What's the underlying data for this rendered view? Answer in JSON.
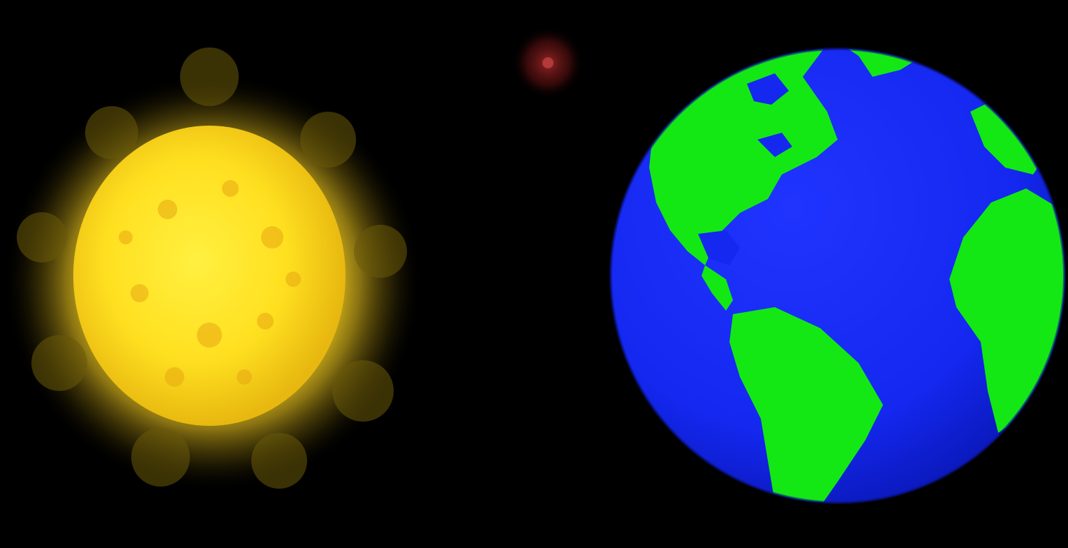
{
  "scene": {
    "kind": "space illustration",
    "background_color": "#000000",
    "sun": {
      "icon": "sun-icon",
      "core_color": "#ffe020",
      "halo_color": "#8a7a10"
    },
    "red_star": {
      "icon": "star-icon",
      "color": "#7a1818"
    },
    "earth": {
      "icon": "globe-icon",
      "ocean_color": "#1428f0",
      "land_color": "#14e814"
    }
  }
}
